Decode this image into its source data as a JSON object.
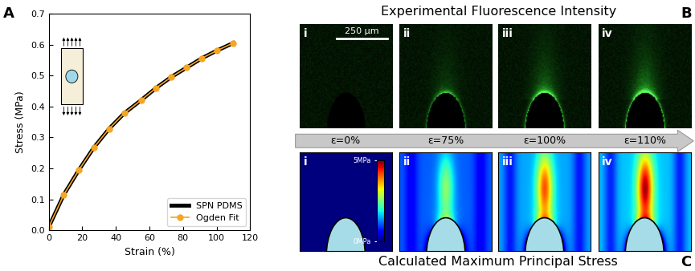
{
  "chart_data": {
    "type": "line",
    "annotations": [
      "A"
    ],
    "x_label": "Strain (%)",
    "y_label": "Stress (MPa)",
    "x": [
      0,
      9,
      18,
      27,
      36,
      45,
      55,
      64,
      73,
      82,
      91,
      100,
      110
    ],
    "series": [
      {
        "name": "SPN PDMS",
        "color": "#000000",
        "marker": "none",
        "line_style": "solid",
        "values": [
          0.01,
          0.115,
          0.195,
          0.268,
          0.328,
          0.378,
          0.42,
          0.46,
          0.495,
          0.525,
          0.555,
          0.58,
          0.605
        ]
      },
      {
        "name": "Ogden Fit",
        "color": "#f5a623",
        "marker": "o",
        "line_style": "solid",
        "values": [
          0.01,
          0.115,
          0.195,
          0.268,
          0.328,
          0.378,
          0.42,
          0.46,
          0.495,
          0.525,
          0.555,
          0.58,
          0.605
        ]
      }
    ],
    "xlim": [
      0,
      120
    ],
    "xticks": [
      0,
      20,
      40,
      60,
      80,
      100,
      120
    ],
    "ylim": [
      0.0,
      0.7
    ],
    "yticks": [
      0.0,
      0.1,
      0.2,
      0.3,
      0.4,
      0.5,
      0.6,
      0.7
    ],
    "legend": "lower right",
    "grid": false
  },
  "strain": {
    "values": [
      0,
      75,
      100,
      110
    ],
    "labels": [
      "ε=0%",
      "ε=75%",
      "ε=100%",
      "ε=110%"
    ]
  },
  "panel_B": {
    "label": "B",
    "title": "Experimental Fluorescence Intensity",
    "scale_bar": "250 μm",
    "images": [
      "i",
      "ii",
      "iii",
      "iv"
    ]
  },
  "panel_C": {
    "label": "C",
    "title": "Calculated Maximum Principal Stress",
    "images": [
      "i",
      "ii",
      "iii",
      "iv"
    ],
    "colorbar": {
      "range": [
        0,
        5
      ],
      "ticks": [
        {
          "value": 5,
          "label": "5MPa"
        },
        {
          "value": 0,
          "label": "0MPa"
        }
      ]
    }
  }
}
